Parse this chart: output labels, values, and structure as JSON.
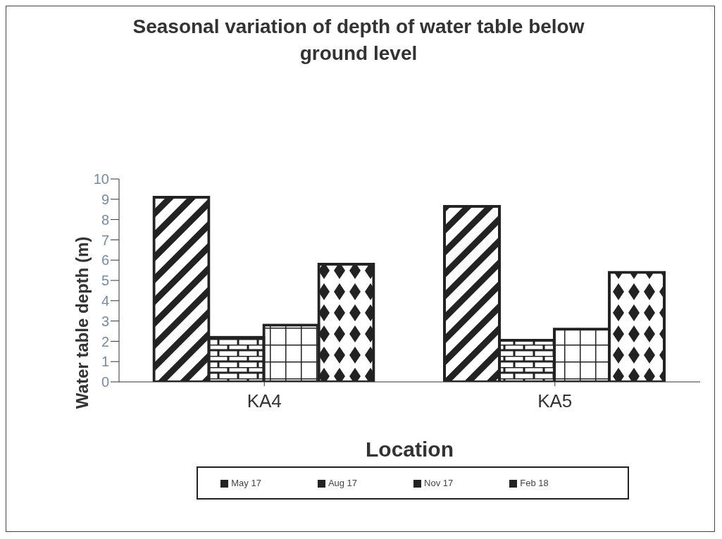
{
  "chart_data": {
    "type": "bar",
    "title": "Seasonal variation of depth of water table below ground level",
    "xlabel": "Location",
    "ylabel": "Water table depth (m)",
    "categories": [
      "KA4",
      "KA5"
    ],
    "series": [
      {
        "name": "May 17",
        "color": "#222222",
        "values": [
          9.1,
          8.65
        ]
      },
      {
        "name": "Aug 17",
        "color": "#222222",
        "values": [
          2.2,
          2.05
        ]
      },
      {
        "name": "Nov 17",
        "color": "#222222",
        "values": [
          2.8,
          2.6
        ]
      },
      {
        "name": "Feb 18",
        "color": "#222222",
        "values": [
          5.8,
          5.4
        ]
      }
    ],
    "ylim": [
      0,
      10
    ],
    "yticks": [
      0,
      1,
      2,
      3,
      4,
      5,
      6,
      7,
      8,
      9,
      10
    ],
    "grid": false,
    "legend": "bottom"
  }
}
